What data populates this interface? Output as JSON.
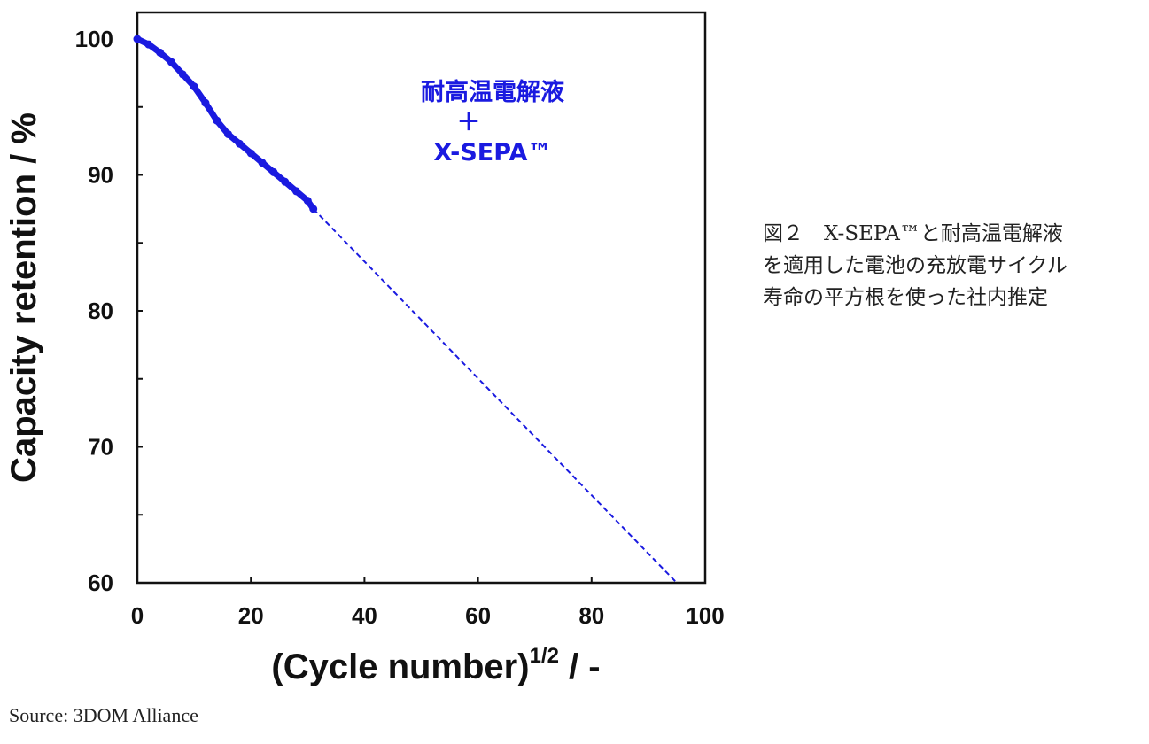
{
  "chart_data": {
    "type": "line",
    "xlabel": "(Cycle number)",
    "xlabel_sup": "1/2",
    "xlabel_suffix": " / -",
    "ylabel": "Capacity retention / %",
    "xlim": [
      0,
      100
    ],
    "ylim": [
      60,
      100
    ],
    "x_ticks": [
      "0",
      "20",
      "40",
      "60",
      "80",
      "100"
    ],
    "y_ticks": [
      "60",
      "70",
      "80",
      "90",
      "100"
    ],
    "grid": false,
    "series": [
      {
        "kind": "measured",
        "color": "#1a1ae0",
        "x": [
          0,
          2,
          4,
          6,
          8,
          10,
          12,
          14,
          16,
          18,
          20,
          22,
          24,
          26,
          28,
          30,
          31
        ],
        "y": [
          100,
          99.6,
          99.0,
          98.3,
          97.4,
          96.5,
          95.3,
          94.0,
          93.0,
          92.3,
          91.6,
          90.9,
          90.2,
          89.5,
          88.8,
          88.1,
          87.5
        ]
      },
      {
        "kind": "extrapolation",
        "style": "dashed",
        "color": "#1a1ae0",
        "x": [
          31,
          95
        ],
        "y": [
          87.5,
          60
        ]
      }
    ],
    "annotation": {
      "line1": "耐高温電解液",
      "line2": "＋",
      "line3": "X-SEPA™"
    }
  },
  "caption": {
    "line1": "図２　X-SEPA™と耐高温電解液",
    "line2": "を適用した電池の充放電サイクル",
    "line3": "寿命の平方根を使った社内推定"
  },
  "source": "Source: 3DOM Alliance"
}
